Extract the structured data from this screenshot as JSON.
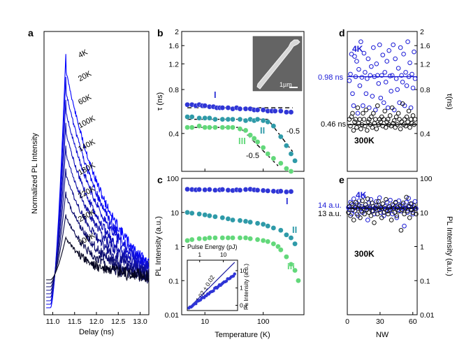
{
  "figure": {
    "panels": {
      "a": "a",
      "b": "b",
      "c": "c",
      "d": "d",
      "e": "e"
    }
  },
  "chart_data": [
    {
      "panel": "a",
      "type": "line",
      "xlabel": "Delay (ns)",
      "ylabel": "Normalized PL Intensity",
      "xlim": [
        10.8,
        13.2
      ],
      "x_ticks": [
        "11.0",
        "11.5",
        "12.0",
        "12.5",
        "13.0"
      ],
      "series": [
        {
          "name": "4K",
          "peak_x": 11.3,
          "decay_ns": 0.98,
          "color": "#0000ff"
        },
        {
          "name": "20K",
          "peak_x": 11.3,
          "decay_ns": 0.95,
          "color": "#0a0ae6"
        },
        {
          "name": "60K",
          "peak_x": 11.3,
          "decay_ns": 0.93,
          "color": "#0f0fd2"
        },
        {
          "name": "100K",
          "peak_x": 11.3,
          "decay_ns": 0.88,
          "color": "#1010bb"
        },
        {
          "name": "140K",
          "peak_x": 11.3,
          "decay_ns": 0.84,
          "color": "#1212a5"
        },
        {
          "name": "180K",
          "peak_x": 11.3,
          "decay_ns": 0.78,
          "color": "#10108c"
        },
        {
          "name": "220K",
          "peak_x": 11.3,
          "decay_ns": 0.7,
          "color": "#0d0d70"
        },
        {
          "name": "260K",
          "peak_x": 11.3,
          "decay_ns": 0.6,
          "color": "#0a0a50"
        },
        {
          "name": "300K",
          "peak_x": 11.3,
          "decay_ns": 0.5,
          "color": "#050520"
        }
      ]
    },
    {
      "panel": "b",
      "type": "scatter",
      "xlabel": "",
      "ylabel": "τ (ns)",
      "xscale": "log",
      "yscale": "log",
      "xlim": [
        4,
        500
      ],
      "ylim": [
        0.22,
        2
      ],
      "y_ticks": [
        "0.4",
        "0.8",
        "1.2",
        "1.6",
        "2"
      ],
      "inset_scale_label": "1µm",
      "fit_labels": [
        "-0.5",
        "-0.5"
      ],
      "series": [
        {
          "name": "I",
          "color": "#2f35d6",
          "x": [
            5,
            6,
            7,
            8,
            9,
            10,
            12,
            14,
            16,
            18,
            20,
            25,
            30,
            35,
            40,
            50,
            60,
            70,
            80,
            100,
            120,
            140,
            160,
            200,
            250,
            300
          ],
          "y": [
            0.63,
            0.63,
            0.62,
            0.63,
            0.62,
            0.62,
            0.61,
            0.61,
            0.6,
            0.6,
            0.6,
            0.6,
            0.59,
            0.6,
            0.59,
            0.59,
            0.59,
            0.58,
            0.58,
            0.58,
            0.57,
            0.57,
            0.57,
            0.57,
            0.56,
            0.56
          ]
        },
        {
          "name": "II",
          "color": "#2e9aa8",
          "x": [
            5,
            6,
            8,
            10,
            12,
            15,
            20,
            25,
            30,
            40,
            50,
            60,
            70,
            80,
            100,
            120,
            150,
            200,
            250,
            300,
            350
          ],
          "y": [
            0.52,
            0.52,
            0.51,
            0.51,
            0.51,
            0.5,
            0.5,
            0.5,
            0.5,
            0.5,
            0.49,
            0.5,
            0.49,
            0.5,
            0.49,
            0.48,
            0.45,
            0.38,
            0.33,
            0.29,
            0.26
          ]
        },
        {
          "name": "III",
          "color": "#62d87a",
          "x": [
            5,
            6,
            8,
            10,
            12,
            15,
            20,
            25,
            30,
            40,
            50,
            60,
            70,
            80,
            100,
            120,
            150,
            200,
            250,
            300
          ],
          "y": [
            0.44,
            0.44,
            0.45,
            0.44,
            0.44,
            0.44,
            0.44,
            0.44,
            0.44,
            0.43,
            0.42,
            0.39,
            0.37,
            0.35,
            0.32,
            0.29,
            0.27,
            0.25,
            0.23,
            0.22
          ]
        }
      ]
    },
    {
      "panel": "c",
      "type": "scatter",
      "xlabel": "Temperature (K)",
      "ylabel": "PL Intensity (a.u.)",
      "xscale": "log",
      "yscale": "log",
      "xlim": [
        4,
        500
      ],
      "ylim": [
        0.01,
        100
      ],
      "x_ticks": [
        "10",
        "100"
      ],
      "y_ticks": [
        "0.01",
        "0.1",
        "1",
        "10",
        "100"
      ],
      "series": [
        {
          "name": "I",
          "color": "#2f35d6",
          "x": [
            5,
            6,
            7,
            8,
            10,
            12,
            15,
            18,
            20,
            25,
            30,
            35,
            40,
            50,
            60,
            70,
            80,
            100,
            120,
            150,
            180,
            200,
            250,
            300
          ],
          "y": [
            48,
            47,
            46,
            47,
            46,
            47,
            45,
            46,
            47,
            45,
            44,
            46,
            45,
            47,
            48,
            46,
            45,
            44,
            43,
            42,
            41,
            42,
            40,
            41
          ]
        },
        {
          "name": "II",
          "color": "#2e9aa8",
          "x": [
            5,
            6,
            8,
            10,
            12,
            15,
            20,
            25,
            30,
            40,
            50,
            60,
            80,
            100,
            120,
            150,
            200,
            250,
            300,
            350
          ],
          "y": [
            10,
            9.5,
            9,
            8.5,
            8,
            7.5,
            7,
            6.5,
            6,
            5.8,
            5.5,
            5.2,
            4.8,
            4.5,
            4,
            3.5,
            3,
            2.2,
            1.8,
            1.2
          ]
        },
        {
          "name": "III",
          "color": "#62d87a",
          "x": [
            5,
            6,
            8,
            10,
            12,
            15,
            20,
            25,
            30,
            40,
            50,
            60,
            80,
            100,
            120,
            150,
            180,
            200,
            250,
            300,
            350,
            400
          ],
          "y": [
            1.5,
            1.6,
            1.7,
            1.7,
            1.8,
            1.8,
            1.8,
            1.8,
            1.8,
            1.8,
            1.8,
            1.7,
            1.6,
            1.5,
            1.4,
            1.2,
            1.0,
            0.8,
            0.5,
            0.3,
            0.2,
            0.1
          ]
        }
      ],
      "inset": {
        "xlabel": "Pulse Energy (pJ)",
        "ylabel": "PL Intensity (a.u.)",
        "x_ticks": [
          "1",
          "10"
        ],
        "y_ticks": [
          "0.1",
          "1",
          "10"
        ],
        "annotation": "1.02 ± 0.02",
        "xlim": [
          0.3,
          40
        ],
        "ylim": [
          0.05,
          40
        ]
      }
    },
    {
      "panel": "d",
      "type": "scatter",
      "ylabel": "τ(ns)",
      "ylim": [
        0.22,
        2
      ],
      "y_ticks": [
        "0.4",
        "0.8",
        "1.2",
        "1.6",
        "2"
      ],
      "ref_lines": [
        {
          "label": "0.98 ns",
          "y": 0.98,
          "color": "#1a1ad6"
        },
        {
          "label": "0.46 ns",
          "y": 0.46,
          "color": "#000000"
        }
      ],
      "series": [
        {
          "name": "4K",
          "color": "#1a1ad6",
          "y": [
            0.92,
            1.02,
            1.4,
            0.75,
            0.62,
            1.35,
            0.98,
            1.25,
            0.55,
            1.1,
            0.85,
            1.7,
            0.97,
            0.62,
            1.42,
            1.05,
            0.75,
            0.95,
            1.3,
            0.6,
            1.0,
            1.15,
            0.72,
            1.55,
            0.98,
            0.58,
            1.2,
            1.0,
            0.88,
            1.62,
            0.7,
            1.0,
            1.38,
            0.65,
            1.05,
            0.9,
            1.25,
            0.6,
            1.48,
            0.99,
            0.78,
            1.0,
            1.62,
            0.58,
            1.3,
            0.95,
            0.8,
            1.12,
            0.65,
            1.55,
            1.0,
            0.9,
            1.4,
            0.62,
            1.05,
            0.85,
            1.7,
            0.98,
            1.22,
            0.6,
            1.02,
            0.82,
            1.45,
            0.95
          ]
        },
        {
          "name": "300K",
          "color": "#111111",
          "y": [
            0.5,
            0.45,
            0.52,
            0.55,
            0.42,
            0.48,
            0.5,
            0.44,
            0.6,
            0.47,
            0.5,
            0.43,
            0.46,
            0.55,
            0.5,
            0.45,
            0.58,
            0.42,
            0.48,
            0.5,
            0.46,
            0.52,
            0.44,
            0.55,
            0.47,
            0.5,
            0.43,
            0.62,
            0.46,
            0.5,
            0.48,
            0.52,
            0.45,
            0.5,
            0.57,
            0.44,
            0.48,
            0.5,
            0.46,
            0.53,
            0.45,
            0.6,
            0.47,
            0.49,
            0.44,
            0.52,
            0.46,
            0.55,
            0.5,
            0.43,
            0.48,
            0.64,
            0.46,
            0.5,
            0.45,
            0.52,
            0.48,
            0.57,
            0.44,
            0.5,
            0.47,
            0.53,
            0.46,
            0.5
          ]
        }
      ]
    },
    {
      "panel": "e",
      "type": "scatter",
      "xlabel": "NW",
      "ylabel": "PL Intensity (a.u.)",
      "yscale": "log",
      "xlim": [
        0,
        64
      ],
      "ylim": [
        0.01,
        100
      ],
      "x_ticks": [
        "0",
        "30",
        "60"
      ],
      "y_ticks": [
        "0.01",
        "0.1",
        "1",
        "10",
        "100"
      ],
      "ref_lines": [
        {
          "label": "14 a.u.",
          "y": 14,
          "color": "#1a1ad6"
        },
        {
          "label": "13 a.u.",
          "y": 13,
          "color": "#000000"
        }
      ],
      "series": [
        {
          "name": "4K",
          "color": "#1a1ad6",
          "y": [
            14,
            12,
            20,
            9,
            16,
            25,
            11,
            14,
            18,
            8,
            22,
            13,
            15,
            10,
            30,
            12,
            17,
            14,
            6,
            19,
            13,
            24,
            11,
            15,
            9,
            14,
            21,
            12,
            16,
            27,
            10,
            13,
            18,
            8,
            15,
            12,
            20,
            14,
            11,
            23,
            13,
            9,
            16,
            14,
            19,
            7,
            12,
            22,
            15,
            11,
            17,
            13,
            4,
            14,
            20,
            10,
            26,
            15,
            12,
            18,
            9,
            14,
            21,
            13
          ]
        },
        {
          "name": "300K",
          "color": "#111111",
          "y": [
            10,
            15,
            8,
            18,
            12,
            6,
            14,
            20,
            9,
            13,
            16,
            7,
            11,
            22,
            13,
            9,
            17,
            12,
            25,
            10,
            14,
            8,
            19,
            11,
            5,
            13,
            16,
            9,
            21,
            12,
            14,
            7,
            18,
            10,
            13,
            24,
            11,
            9,
            15,
            12,
            6,
            17,
            13,
            10,
            20,
            8,
            14,
            11,
            16,
            3,
            12,
            19,
            9,
            13,
            28,
            11,
            15,
            7,
            18,
            12,
            10,
            16,
            13,
            9
          ]
        }
      ]
    }
  ],
  "labels": {
    "b_I": "I",
    "b_II": "II",
    "b_III": "III",
    "c_I": "I",
    "c_II": "II",
    "c_III": "III",
    "d_4K": "4K",
    "d_300K": "300K",
    "e_4K": "4K",
    "e_300K": "300K"
  }
}
